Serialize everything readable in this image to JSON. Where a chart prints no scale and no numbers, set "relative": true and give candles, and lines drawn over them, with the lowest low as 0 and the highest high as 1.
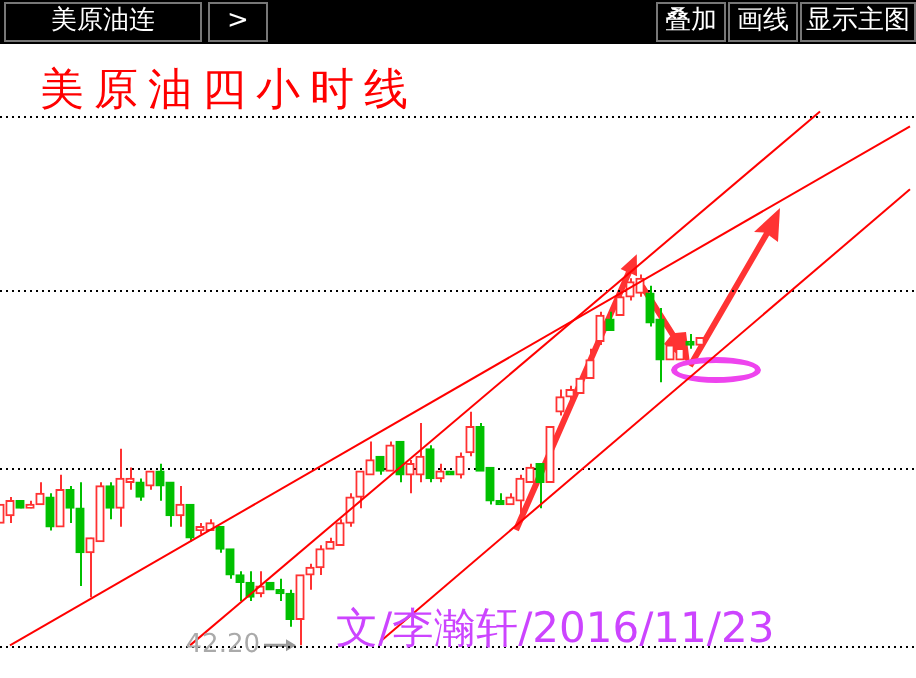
{
  "chart_data": {
    "type": "candlestick",
    "title": "美原油四小时线",
    "relative": true,
    "categories": [
      null,
      null,
      null,
      null,
      null,
      null,
      null,
      null,
      null,
      null,
      null,
      null,
      null,
      null,
      null,
      null,
      null,
      null,
      null,
      null,
      null,
      null,
      null,
      null,
      null,
      null,
      null,
      null,
      null,
      null,
      null,
      null,
      null,
      null,
      null,
      null,
      null,
      null,
      null,
      null,
      null,
      null,
      null,
      null,
      null,
      null,
      null,
      null,
      null,
      null,
      null,
      null,
      null,
      null,
      null,
      null,
      null,
      null,
      null,
      null,
      null,
      null,
      null,
      null,
      null,
      null,
      null,
      null,
      null,
      null,
      null,
      null,
      null,
      null,
      null,
      null,
      null,
      null,
      null,
      null,
      null,
      null,
      null,
      null,
      null,
      null,
      null,
      null,
      null,
      null,
      null,
      null
    ],
    "ohlc": [
      [
        0.33,
        0.38,
        0.33,
        0.38
      ],
      [
        0.35,
        0.4,
        0.33,
        0.39
      ],
      [
        0.39,
        0.39,
        0.37,
        0.37
      ],
      [
        0.37,
        0.39,
        0.37,
        0.38
      ],
      [
        0.38,
        0.44,
        0.38,
        0.41
      ],
      [
        0.4,
        0.41,
        0.31,
        0.32
      ],
      [
        0.32,
        0.46,
        0.32,
        0.42
      ],
      [
        0.42,
        0.43,
        0.33,
        0.37
      ],
      [
        0.37,
        0.44,
        0.16,
        0.25
      ],
      [
        0.25,
        0.29,
        0.13,
        0.29
      ],
      [
        0.28,
        0.44,
        0.28,
        0.43
      ],
      [
        0.43,
        0.44,
        0.34,
        0.37
      ],
      [
        0.37,
        0.53,
        0.32,
        0.45
      ],
      [
        0.44,
        0.48,
        0.42,
        0.45
      ],
      [
        0.44,
        0.45,
        0.39,
        0.4
      ],
      [
        0.43,
        0.47,
        0.42,
        0.47
      ],
      [
        0.47,
        0.49,
        0.39,
        0.43
      ],
      [
        0.44,
        0.44,
        0.32,
        0.35
      ],
      [
        0.35,
        0.43,
        0.32,
        0.38
      ],
      [
        0.38,
        0.38,
        0.28,
        0.29
      ],
      [
        0.31,
        0.33,
        0.3,
        0.32
      ],
      [
        0.31,
        0.34,
        0.31,
        0.33
      ],
      [
        0.32,
        0.32,
        0.25,
        0.26
      ],
      [
        0.26,
        0.26,
        0.18,
        0.19
      ],
      [
        0.19,
        0.2,
        0.12,
        0.17
      ],
      [
        0.17,
        0.2,
        0.12,
        0.13
      ],
      [
        0.14,
        0.2,
        0.13,
        0.16
      ],
      [
        0.17,
        0.17,
        0.15,
        0.15
      ],
      [
        0.15,
        0.18,
        0.12,
        0.14
      ],
      [
        0.14,
        0.15,
        0.05,
        0.07
      ],
      [
        0.07,
        0.19,
        0,
        0.19
      ],
      [
        0.19,
        0.22,
        0.15,
        0.21
      ],
      [
        0.21,
        0.27,
        0.19,
        0.26
      ],
      [
        0.26,
        0.29,
        0.26,
        0.28
      ],
      [
        0.27,
        0.34,
        0.27,
        0.33
      ],
      [
        0.33,
        0.41,
        0.32,
        0.4
      ],
      [
        0.4,
        0.47,
        0.37,
        0.47
      ],
      [
        0.46,
        0.55,
        0.46,
        0.5
      ],
      [
        0.51,
        0.51,
        0.46,
        0.47
      ],
      [
        0.47,
        0.55,
        0.47,
        0.54
      ],
      [
        0.55,
        0.55,
        0.44,
        0.46
      ],
      [
        0.46,
        0.5,
        0.41,
        0.49
      ],
      [
        0.46,
        0.6,
        0.44,
        0.51
      ],
      [
        0.53,
        0.54,
        0.44,
        0.45
      ],
      [
        0.45,
        0.49,
        0.44,
        0.47
      ],
      [
        0.47,
        0.47,
        0.46,
        0.46
      ],
      [
        0.46,
        0.52,
        0.45,
        0.51
      ],
      [
        0.52,
        0.63,
        0.51,
        0.59
      ],
      [
        0.59,
        0.6,
        0.47,
        0.47
      ],
      [
        0.48,
        0.48,
        0.38,
        0.39
      ],
      [
        0.39,
        0.41,
        0.38,
        0.38
      ],
      [
        0.38,
        0.41,
        0.38,
        0.4
      ],
      [
        0.39,
        0.46,
        0.34,
        0.45
      ],
      [
        0.44,
        0.49,
        0.44,
        0.48
      ],
      [
        0.49,
        0.49,
        0.37,
        0.44
      ],
      [
        0.44,
        0.59,
        0.44,
        0.59
      ],
      [
        0.63,
        0.69,
        0.62,
        0.67
      ],
      [
        0.67,
        0.7,
        0.66,
        0.69
      ],
      [
        0.68,
        0.72,
        0.68,
        0.72
      ],
      [
        0.72,
        0.8,
        0.72,
        0.77
      ],
      [
        0.82,
        0.9,
        0.81,
        0.89
      ],
      [
        0.88,
        0.9,
        0.85,
        0.85
      ],
      [
        0.89,
        0.95,
        0.89,
        0.94
      ],
      [
        0.94,
        0.99,
        0.93,
        0.98
      ],
      [
        0.95,
        1,
        0.94,
        0.99
      ],
      [
        0.95,
        0.97,
        0.86,
        0.87
      ],
      [
        0.88,
        0.91,
        0.71,
        0.77
      ],
      [
        0.77,
        0.82,
        0.77,
        0.81
      ],
      [
        0.77,
        0.8,
        0.77,
        0.8
      ],
      [
        0.82,
        0.84,
        0.8,
        0.81
      ],
      [
        0.81,
        0.83,
        0.81,
        0.83
      ],
      null,
      null,
      null,
      null,
      null,
      null,
      null,
      null,
      null,
      null,
      null,
      null,
      null,
      null,
      null,
      null,
      null,
      null,
      null,
      null,
      null
    ],
    "colors": [
      "#ff3232",
      "#ff3232",
      "#00c000",
      "#ff3232",
      "#ff3232",
      "#00c000",
      "#ff3232",
      "#00c000",
      "#00c000",
      "#ff3232",
      "#ff3232",
      "#00c000",
      "#ff3232",
      "#ff3232",
      "#00c000",
      "#ff3232",
      "#00c000",
      "#00c000",
      "#ff3232",
      "#00c000",
      "#ff3232",
      "#ff3232",
      "#00c000",
      "#00c000",
      "#00c000",
      "#00c000",
      "#ff3232",
      "#00c000",
      "#00c000",
      "#00c000",
      "#ff3232",
      "#ff3232",
      "#ff3232",
      "#ff3232",
      "#ff3232",
      "#ff3232",
      "#ff3232",
      "#ff3232",
      "#00c000",
      "#ff3232",
      "#00c000",
      "#ff3232",
      "#ff3232",
      "#00c000",
      "#ff3232",
      "#00c000",
      "#ff3232",
      "#ff3232",
      "#00c000",
      "#00c000",
      "#00c000",
      "#ff3232",
      "#ff3232",
      "#ff3232",
      "#00c000",
      "#ff3232",
      "#ff3232",
      "#ff3232",
      "#ff3232",
      "#ff3232",
      "#ff3232",
      "#00c000",
      "#ff3232",
      "#ff3232",
      "#ff3232",
      "#00c000",
      "#00c000",
      "#ff3232",
      "#ff3232",
      "#00c000",
      "#ff3232",
      null,
      null,
      null,
      null,
      null,
      null,
      null,
      null,
      null,
      null,
      null,
      null,
      null,
      null,
      null,
      null,
      null,
      null,
      null,
      null,
      null
    ],
    "series": [
      {
        "type": "line",
        "color": "#ff0000",
        "values": [
          null,
          0,
          null,
          null,
          null,
          null,
          null,
          null,
          null,
          null,
          null,
          null,
          null,
          null,
          null,
          null,
          null,
          null,
          null,
          null,
          null,
          null,
          null,
          null,
          null,
          null,
          null,
          null,
          null,
          null,
          null,
          null,
          null,
          null,
          null,
          null,
          null,
          null,
          null,
          null,
          null,
          null,
          null,
          null,
          null,
          null,
          null,
          null,
          null,
          null,
          null,
          null,
          null,
          null,
          null,
          null,
          null,
          null,
          null,
          null,
          null,
          null,
          null,
          null,
          null,
          null,
          null,
          null,
          null,
          null,
          null,
          null,
          null,
          null,
          null,
          null,
          null,
          null,
          null,
          null,
          null,
          null,
          null,
          null,
          null,
          null,
          null,
          null,
          null,
          null,
          null,
          1.4
        ]
      },
      {
        "type": "line",
        "color": "#ff0000",
        "values": [
          null,
          null,
          null,
          null,
          null,
          null,
          null,
          null,
          null,
          null,
          null,
          null,
          null,
          null,
          null,
          null,
          null,
          null,
          null,
          0,
          null,
          null,
          null,
          null,
          null,
          null,
          null,
          null,
          null,
          null,
          null,
          null,
          null,
          null,
          null,
          null,
          null,
          null,
          null,
          null,
          null,
          null,
          null,
          null,
          null,
          null,
          null,
          null,
          null,
          null,
          null,
          null,
          null,
          null,
          null,
          null,
          null,
          null,
          null,
          null,
          null,
          null,
          null,
          null,
          null,
          null,
          null,
          null,
          null,
          null,
          null,
          null,
          null,
          null,
          null,
          null,
          null,
          null,
          null,
          null,
          null,
          null,
          1.44,
          null,
          null,
          null,
          null,
          null,
          null,
          null,
          null,
          null
        ]
      },
      {
        "type": "line",
        "color": "#ff0000",
        "values": [
          null,
          null,
          null,
          null,
          null,
          null,
          null,
          null,
          null,
          null,
          null,
          null,
          null,
          null,
          null,
          null,
          null,
          null,
          null,
          null,
          null,
          null,
          null,
          null,
          null,
          null,
          null,
          null,
          null,
          null,
          null,
          null,
          null,
          null,
          null,
          null,
          null,
          null,
          0.01,
          null,
          null,
          null,
          null,
          null,
          null,
          null,
          null,
          null,
          null,
          null,
          null,
          null,
          null,
          null,
          null,
          null,
          null,
          null,
          null,
          null,
          null,
          null,
          null,
          null,
          null,
          null,
          null,
          null,
          null,
          null,
          null,
          null,
          null,
          null,
          null,
          null,
          null,
          null,
          null,
          null,
          null,
          null,
          null,
          null,
          null,
          null,
          null,
          null,
          null,
          null,
          null,
          1.23
        ]
      }
    ],
    "ref_lines": [
      {
        "axis": "y",
        "value": 0,
        "color": "#000000",
        "line_style": "dotted"
      },
      {
        "axis": "y",
        "value": 0.48,
        "color": "#000000",
        "line_style": "dotted"
      },
      {
        "axis": "y",
        "value": 0.96,
        "color": "#000000",
        "line_style": "dotted"
      },
      {
        "axis": "y",
        "value": 1.43,
        "color": "#000000",
        "line_style": "dotted"
      }
    ],
    "annotations": [
      "美原油连",
      ">",
      "叠加",
      "画线",
      "显示主图",
      {
        "text": "42.20",
        "y": 0
      },
      "文/李瀚轩/2016/11/23"
    ]
  }
}
